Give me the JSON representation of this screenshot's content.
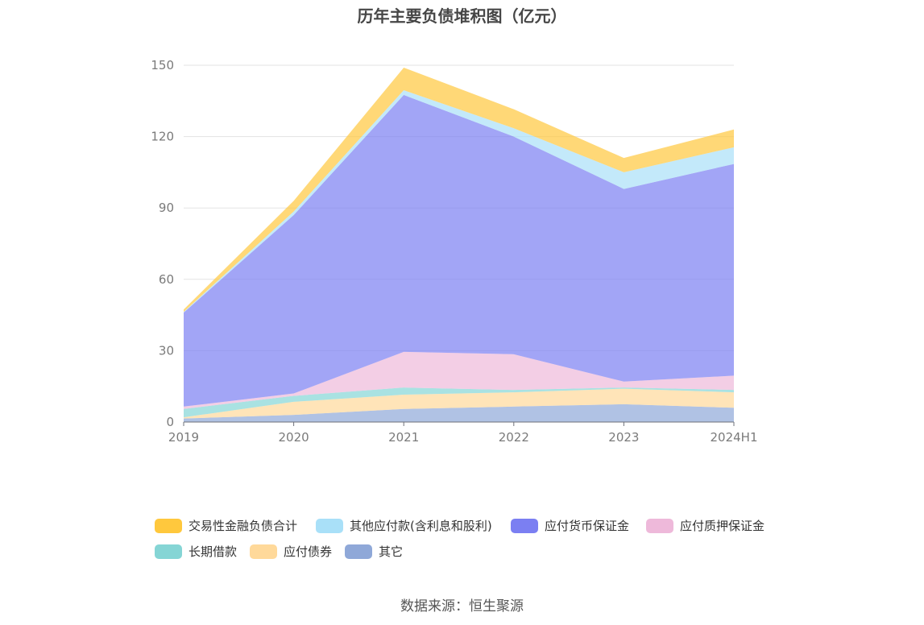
{
  "title": "历年主要负债堆积图（亿元）",
  "source": "数据来源：恒生聚源",
  "chart_data": {
    "type": "area",
    "stacked": true,
    "categories": [
      "2019",
      "2020",
      "2021",
      "2022",
      "2023",
      "2024H1"
    ],
    "ylim": [
      0,
      150
    ],
    "yticks": [
      0,
      30,
      60,
      90,
      120,
      150
    ],
    "grid": true,
    "legend_position": "bottom",
    "series": [
      {
        "name": "其它",
        "color": "#8fa8d8",
        "values": [
          1.5,
          3.0,
          5.5,
          6.5,
          7.5,
          6.0
        ]
      },
      {
        "name": "应付债券",
        "color": "#ffd99a",
        "values": [
          0.5,
          5.5,
          6.0,
          6.0,
          6.5,
          6.5
        ]
      },
      {
        "name": "长期借款",
        "color": "#85d5d5",
        "values": [
          3.5,
          2.5,
          3.0,
          1.0,
          0.5,
          1.0
        ]
      },
      {
        "name": "应付质押保证金",
        "color": "#eeb9da",
        "values": [
          1.0,
          1.0,
          15.0,
          15.0,
          2.5,
          6.0
        ]
      },
      {
        "name": "应付货币保证金",
        "color": "#7b7ff2",
        "values": [
          39.5,
          75.0,
          108.0,
          91.5,
          81.0,
          89.0
        ]
      },
      {
        "name": "其他应付款(含利息和股利)",
        "color": "#a9e0f8",
        "values": [
          0.3,
          1.5,
          2.0,
          3.5,
          7.0,
          7.0
        ]
      },
      {
        "name": "交易性金融负债合计",
        "color": "#ffc83d",
        "values": [
          1.0,
          4.5,
          9.5,
          8.0,
          6.0,
          7.5
        ]
      }
    ]
  },
  "legend_order": [
    "交易性金融负债合计",
    "其他应付款(含利息和股利)",
    "应付货币保证金",
    "应付质押保证金",
    "长期借款",
    "应付债券",
    "其它"
  ]
}
